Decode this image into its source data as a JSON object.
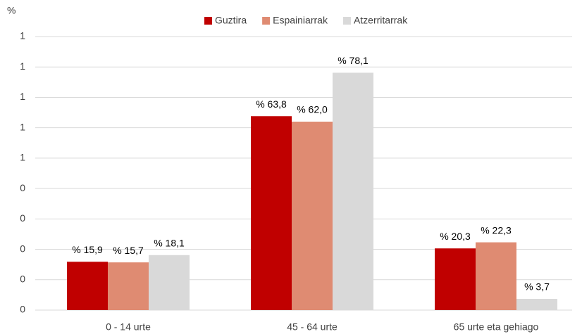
{
  "chart_data": {
    "type": "bar",
    "y_label": "%",
    "categories": [
      "0 - 14 urte",
      "45 - 64 urte",
      "65 urte eta gehiago"
    ],
    "series": [
      {
        "name": "Guztira",
        "color": "#c00000",
        "values": [
          0.159,
          0.638,
          0.203
        ],
        "value_labels": [
          "% 15,9",
          "% 63,8",
          "% 20,3"
        ]
      },
      {
        "name": "Espainiarrak",
        "color": "#df8b72",
        "values": [
          0.157,
          0.62,
          0.223
        ],
        "value_labels": [
          "% 15,7",
          "% 62,0",
          "% 22,3"
        ]
      },
      {
        "name": "Atzerritarrak",
        "color": "#d9d9d9",
        "values": [
          0.181,
          0.781,
          0.037
        ],
        "value_labels": [
          "% 18,1",
          "% 78,1",
          "% 3,7"
        ]
      }
    ],
    "ylim": [
      0,
      0.9
    ],
    "yticks": [
      0,
      {
        "value": 0.1,
        "label": "0"
      },
      {
        "value": 0.2,
        "label": "0"
      },
      {
        "value": 0.3,
        "label": "0"
      },
      {
        "value": 0.4,
        "label": "0"
      },
      {
        "value": 0.5,
        "label": "1"
      },
      {
        "value": 0.6,
        "label": "1"
      },
      {
        "value": 0.7,
        "label": "1"
      },
      {
        "value": 0.8,
        "label": "1"
      },
      {
        "value": 0.9,
        "label": "1"
      }
    ],
    "grid": true,
    "legend": "top"
  }
}
